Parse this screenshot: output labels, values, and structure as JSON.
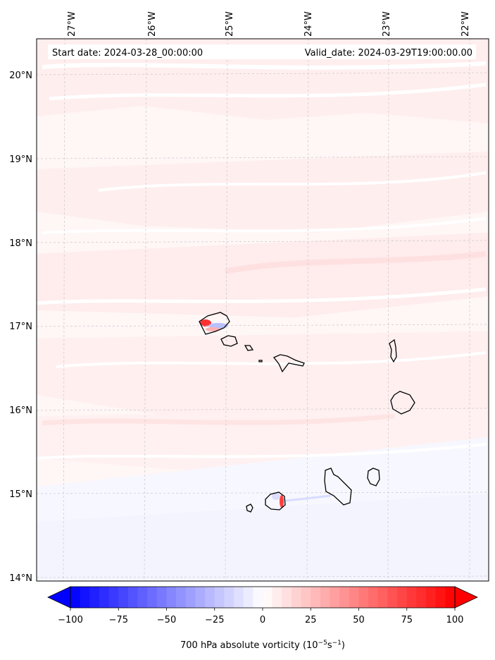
{
  "map": {
    "start_label": "Start date: 2024-03-28_00:00:00",
    "valid_label": "Valid_date: 2024-03-29T19:00:00.00",
    "lon_labels": [
      "27°W",
      "26°W",
      "25°W",
      "24°W",
      "23°W",
      "22°W"
    ],
    "lat_labels": [
      "20°N",
      "19°N",
      "18°N",
      "17°N",
      "16°N",
      "15°N",
      "14°N"
    ]
  },
  "colorbar": {
    "ticks": [
      -100,
      -75,
      -50,
      -25,
      0,
      25,
      50,
      75,
      100
    ],
    "tick_labels": [
      "−100",
      "−75",
      "−50",
      "−25",
      "0",
      "25",
      "50",
      "75",
      "100"
    ],
    "range": [
      -100,
      100
    ],
    "label_prefix": "700 hPa absolute vorticity (10",
    "label_exp1": "−5",
    "label_mid": "s",
    "label_exp2": "−1",
    "label_suffix": ")",
    "colors": {
      "low": "#0000ff",
      "mid": "#ffffff",
      "high": "#ff0000"
    }
  }
}
